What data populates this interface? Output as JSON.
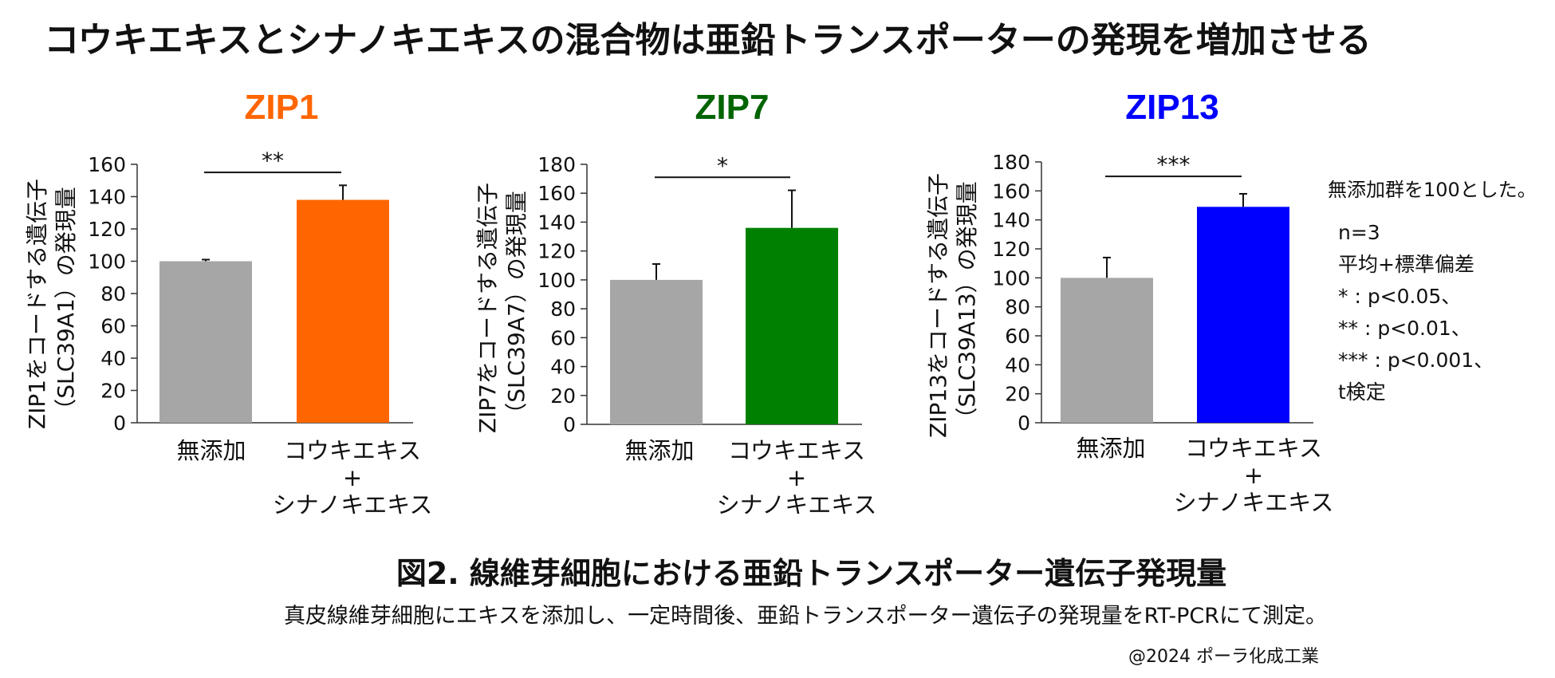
{
  "title": "コウキエキスとシナノキエキスの混合物は亜鉛トランスポーターの発現を増加させる",
  "chart_data": [
    {
      "type": "bar",
      "title": "ZIP1",
      "title_color": "#FF6600",
      "ylabel": [
        "ZIP1をコードする遺伝子",
        "（SLC39A1）の発現量"
      ],
      "categories": [
        [
          "無添加"
        ],
        [
          "コウキエキス",
          "+",
          "シナノキエキス"
        ]
      ],
      "values": [
        100,
        138
      ],
      "errors": [
        1,
        9
      ],
      "colors": [
        "#A6A6A6",
        "#FF6600"
      ],
      "ylim": [
        0,
        160
      ],
      "yticks": [
        "0",
        "20",
        "40",
        "60",
        "80",
        "100",
        "120",
        "140",
        "160"
      ],
      "significance": "**",
      "significance_y": 155
    },
    {
      "type": "bar",
      "title": "ZIP7",
      "title_color": "#006400",
      "ylabel": [
        "ZIP7をコードする遺伝子",
        "（SLC39A7）の発現量"
      ],
      "categories": [
        [
          "無添加"
        ],
        [
          "コウキエキス",
          "+",
          "シナノキエキス"
        ]
      ],
      "values": [
        100,
        136
      ],
      "errors": [
        11,
        26
      ],
      "colors": [
        "#A6A6A6",
        "#008000"
      ],
      "ylim": [
        0,
        180
      ],
      "yticks": [
        "0",
        "20",
        "40",
        "60",
        "80",
        "100",
        "120",
        "140",
        "160",
        "180"
      ],
      "significance": "*",
      "significance_y": 171
    },
    {
      "type": "bar",
      "title": "ZIP13",
      "title_color": "#0000FF",
      "ylabel": [
        "ZIP13をコードする遺伝子",
        "（SLC39A13）の発現量"
      ],
      "categories": [
        [
          "無添加"
        ],
        [
          "コウキエキス",
          "+",
          "シナノキエキス"
        ]
      ],
      "values": [
        100,
        149
      ],
      "errors": [
        14,
        9
      ],
      "colors": [
        "#A6A6A6",
        "#0000FF"
      ],
      "ylim": [
        0,
        180
      ],
      "yticks": [
        "0",
        "20",
        "40",
        "60",
        "80",
        "100",
        "120",
        "140",
        "160",
        "180"
      ],
      "significance": "***",
      "significance_y": 170
    }
  ],
  "notes": [
    "無添加群を100とした。",
    "n=3",
    "平均+標準偏差",
    "* : p<0.05、",
    "** : p<0.01、",
    "*** : p<0.001、",
    "t検定"
  ],
  "caption": "図2. 線維芽細胞における亜鉛トランスポーター遺伝子発現量",
  "subcaption": "真皮線維芽細胞にエキスを添加し、一定時間後、亜鉛トランスポーター遺伝子の発現量をRT-PCRにて測定。",
  "copyright": "@2024 ポーラ化成工業"
}
